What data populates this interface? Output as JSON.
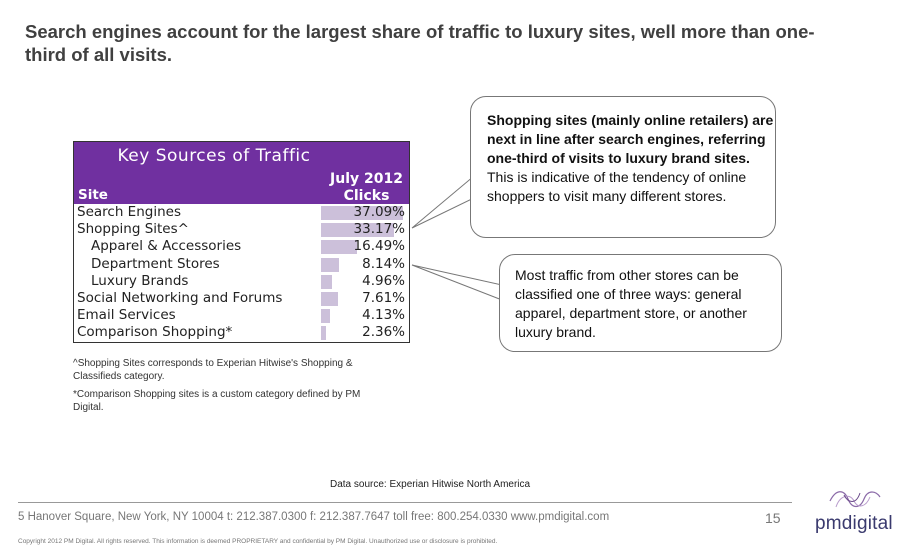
{
  "slide": {
    "title": "Search engines account for the largest share of traffic to luxury sites, well more than one-third of all visits."
  },
  "table": {
    "caption": "Key Sources of Traffic",
    "site_header": "Site",
    "period_header": "July 2012",
    "metric_header": "Clicks",
    "rows": [
      {
        "label": "Search Engines",
        "value": "37.09%",
        "pct": 37.09,
        "indent": false
      },
      {
        "label": "Shopping Sites^",
        "value": "33.17%",
        "pct": 33.17,
        "indent": false
      },
      {
        "label": "Apparel & Accessories",
        "value": "16.49%",
        "pct": 16.49,
        "indent": true
      },
      {
        "label": "Department Stores",
        "value": "8.14%",
        "pct": 8.14,
        "indent": true
      },
      {
        "label": "Luxury Brands",
        "value": "4.96%",
        "pct": 4.96,
        "indent": true
      },
      {
        "label": "Social Networking and Forums",
        "value": "7.61%",
        "pct": 7.61,
        "indent": false
      },
      {
        "label": "Email Services",
        "value": "4.13%",
        "pct": 4.13,
        "indent": false
      },
      {
        "label": "Comparison Shopping*",
        "value": "2.36%",
        "pct": 2.36,
        "indent": false
      }
    ],
    "bar_color": "#ccc0da",
    "header_color": "#7030a0"
  },
  "notes": {
    "shopping": "^Shopping Sites corresponds to Experian Hitwise's Shopping & Classifieds category.",
    "comparison": "*Comparison Shopping sites is a custom category defined by PM Digital."
  },
  "callouts": {
    "shopping_bold": "Shopping sites (mainly online retailers) are next in line after search engines, referring one-third of visits to luxury brand sites.",
    "shopping_text": "This is indicative of the tendency of online shoppers to visit many different stores.",
    "stores": "Most traffic from other stores can be classified one of three ways: general apparel, department store, or another luxury brand."
  },
  "source": "Data source:  Experian Hitwise North America",
  "footer": {
    "address": "5 Hanover Square, New York, NY 10004  t: 212.387.0300  f: 212.387.7647  toll free: 800.254.0330  www.pmdigital.com",
    "page": "15",
    "copyright": "Copyright 2012 PM Digital. All rights reserved.  This information is deemed PROPRIETARY and confidential by PM Digital. Unauthorized use or disclosure is prohibited.",
    "logo": "pmdigital"
  }
}
